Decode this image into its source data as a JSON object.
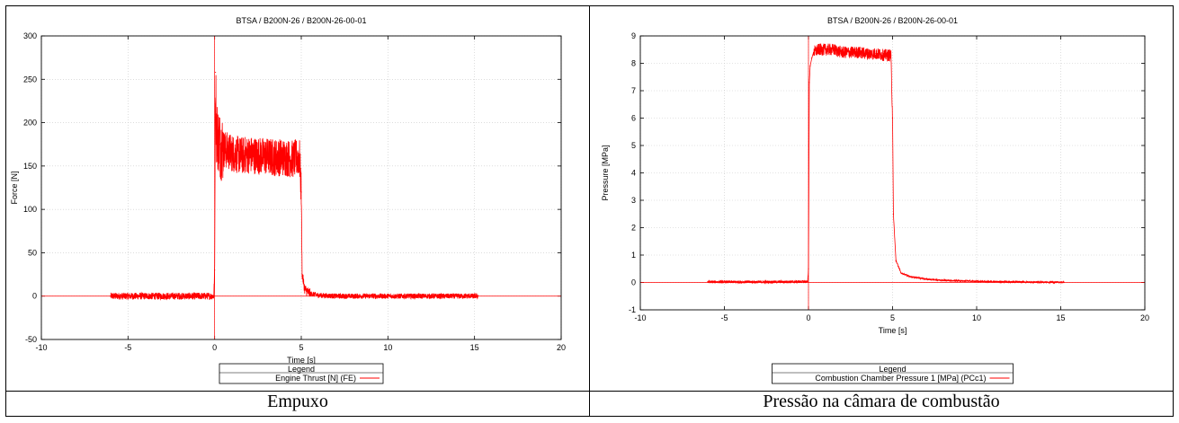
{
  "captions": {
    "left": "Empuxo",
    "right": "Pressão na câmara de combustão"
  },
  "colors": {
    "series": "#ff0000",
    "grid": "#c8c8c8",
    "axis": "#000000"
  },
  "chart_data": [
    {
      "type": "line",
      "title": "BTSA / B200N-26 / B200N-26-00-01",
      "xlabel": "Time [s]",
      "ylabel": "Force [N]",
      "xlim": [
        -10,
        20
      ],
      "ylim": [
        -50,
        300
      ],
      "xticks": [
        "-10",
        "-5",
        "0",
        "5",
        "10",
        "15",
        "20"
      ],
      "yticks": [
        "-50",
        "0",
        "50",
        "100",
        "150",
        "200",
        "250",
        "300"
      ],
      "grid": true,
      "legend_position": "bottom-center",
      "legend_title": "Legend",
      "series": [
        {
          "name": "Engine Thrust [N] (FE)",
          "color": "#ff0000",
          "x": [
            -6,
            -5,
            -4,
            -3,
            -2,
            -1,
            -0.05,
            0,
            0.05,
            0.1,
            0.3,
            0.5,
            1,
            1.5,
            2,
            2.5,
            3,
            3.5,
            4,
            4.5,
            4.9,
            5.0,
            5.05,
            5.2,
            5.5,
            6,
            7,
            8,
            10,
            12,
            14,
            15.2
          ],
          "y": [
            0,
            0,
            0,
            0,
            0,
            0,
            0,
            30,
            258,
            190,
            175,
            170,
            165,
            162,
            163,
            162,
            161,
            160,
            160,
            158,
            160,
            120,
            25,
            8,
            3,
            1,
            0,
            0,
            0,
            0,
            0,
            0
          ],
          "noise_band": {
            "ranges": [
              [
                -6,
                0,
                4
              ],
              [
                0.05,
                0.5,
                40
              ],
              [
                0.5,
                5.0,
                22
              ],
              [
                5.0,
                5.5,
                6
              ],
              [
                5.5,
                15.2,
                3
              ]
            ]
          }
        }
      ],
      "reference_lines": {
        "x": 0,
        "y": 0
      }
    },
    {
      "type": "line",
      "title": "BTSA / B200N-26 / B200N-26-00-01",
      "xlabel": "Time [s]",
      "ylabel": "Pressure [MPa]",
      "xlim": [
        -10,
        20
      ],
      "ylim": [
        -1,
        9
      ],
      "xticks": [
        "-10",
        "-5",
        "0",
        "5",
        "10",
        "15",
        "20"
      ],
      "yticks": [
        "-1",
        "0",
        "1",
        "2",
        "3",
        "4",
        "5",
        "6",
        "7",
        "8",
        "9"
      ],
      "grid": true,
      "legend_position": "bottom-center",
      "legend_title": "Legend",
      "series": [
        {
          "name": "Combustion Chamber Pressure 1 [MPa] (PCc1)",
          "color": "#ff0000",
          "x": [
            -6,
            -4,
            -2,
            -0.05,
            0,
            0.05,
            0.1,
            0.2,
            0.3,
            0.6,
            1,
            1.5,
            2,
            2.5,
            3,
            3.5,
            4,
            4.5,
            4.9,
            5.0,
            5.05,
            5.2,
            5.5,
            6,
            7,
            8,
            10,
            12,
            14,
            15.2
          ],
          "y": [
            0.02,
            0.02,
            0.02,
            0.03,
            0.5,
            7.3,
            7.9,
            8.2,
            8.4,
            8.5,
            8.5,
            8.5,
            8.4,
            8.4,
            8.4,
            8.35,
            8.35,
            8.3,
            8.3,
            6.0,
            2.5,
            0.8,
            0.35,
            0.22,
            0.12,
            0.08,
            0.04,
            0.02,
            0.01,
            0.01
          ],
          "noise_band": {
            "ranges": [
              [
                -6,
                0,
                0.05
              ],
              [
                0.3,
                5.0,
                0.22
              ],
              [
                5.0,
                15.2,
                0.03
              ]
            ]
          }
        }
      ],
      "reference_lines": {
        "x": 0,
        "y": 0
      }
    }
  ]
}
